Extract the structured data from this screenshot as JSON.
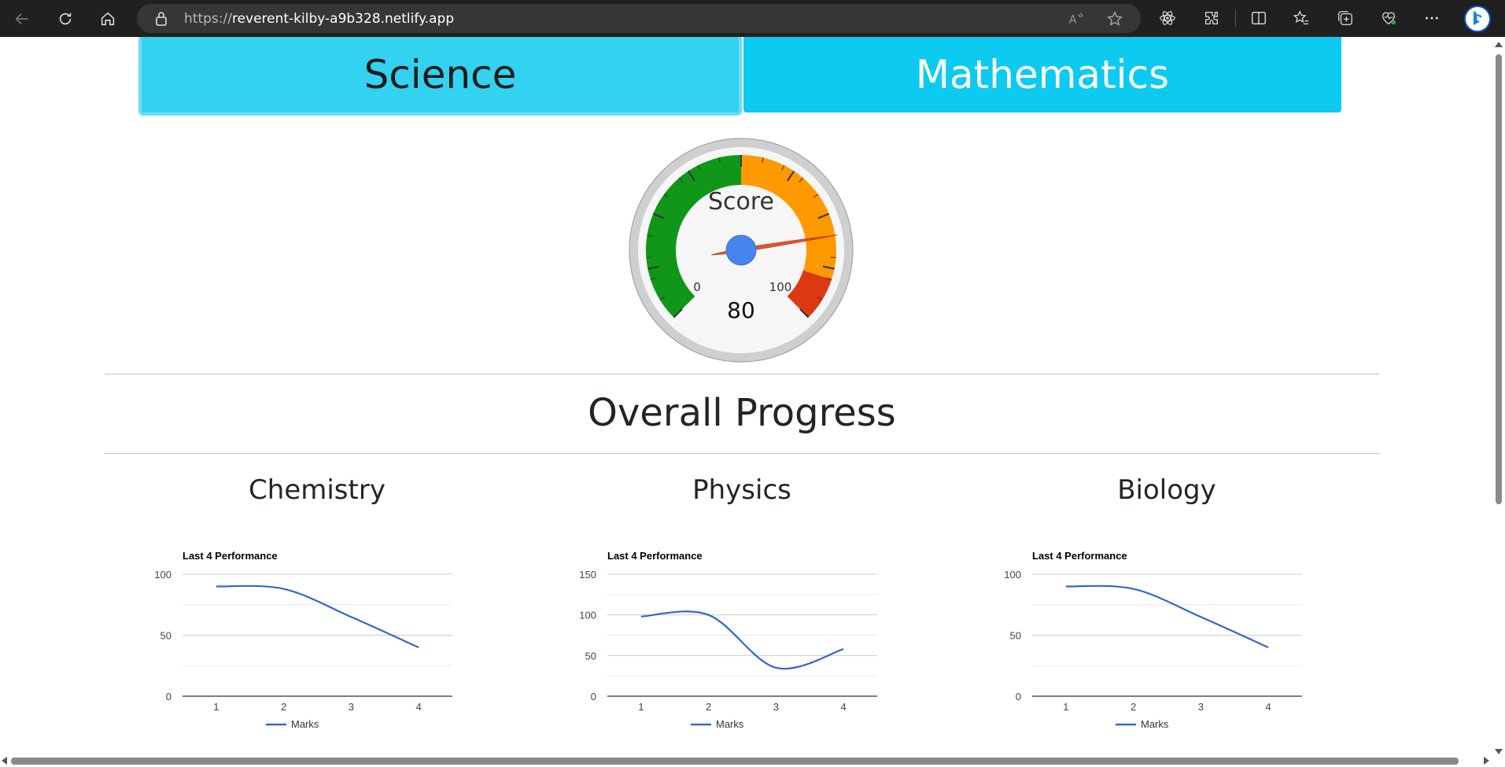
{
  "browser": {
    "url_protocol": "https://",
    "url_host": "reverent-kilby-a9b328.netlify.app"
  },
  "tabs": {
    "science": "Science",
    "mathematics": "Mathematics"
  },
  "gauge": {
    "label": "Score",
    "min_label": "0",
    "max_label": "100",
    "value": 80,
    "value_text": "80",
    "colors": {
      "green": "#109618",
      "orange": "#ff9900",
      "red": "#dc3912",
      "needle": "#dc3912",
      "hub": "#4684ee"
    }
  },
  "overall": {
    "title": "Overall Progress"
  },
  "subjects": [
    {
      "title": "Chemistry"
    },
    {
      "title": "Physics"
    },
    {
      "title": "Biology"
    }
  ],
  "chart_data": [
    {
      "type": "line",
      "title": "Last 4 Performance",
      "x": [
        1,
        2,
        3,
        4
      ],
      "series": [
        {
          "name": "Marks",
          "values": [
            90,
            88,
            65,
            40
          ],
          "color": "#3366cc"
        }
      ],
      "ylim": [
        0,
        100
      ],
      "yticks": [
        0,
        50,
        100
      ],
      "grid": true,
      "legend": "bottom"
    },
    {
      "type": "line",
      "title": "Last 4 Performance",
      "x": [
        1,
        2,
        3,
        4
      ],
      "series": [
        {
          "name": "Marks",
          "values": [
            98,
            100,
            35,
            58
          ],
          "color": "#3366cc"
        }
      ],
      "ylim": [
        0,
        150
      ],
      "yticks": [
        0,
        50,
        100,
        150
      ],
      "grid": true,
      "legend": "bottom"
    },
    {
      "type": "line",
      "title": "Last 4 Performance",
      "x": [
        1,
        2,
        3,
        4
      ],
      "series": [
        {
          "name": "Marks",
          "values": [
            90,
            88,
            65,
            40
          ],
          "color": "#3366cc"
        }
      ],
      "ylim": [
        0,
        100
      ],
      "yticks": [
        0,
        50,
        100
      ],
      "grid": true,
      "legend": "bottom"
    }
  ]
}
